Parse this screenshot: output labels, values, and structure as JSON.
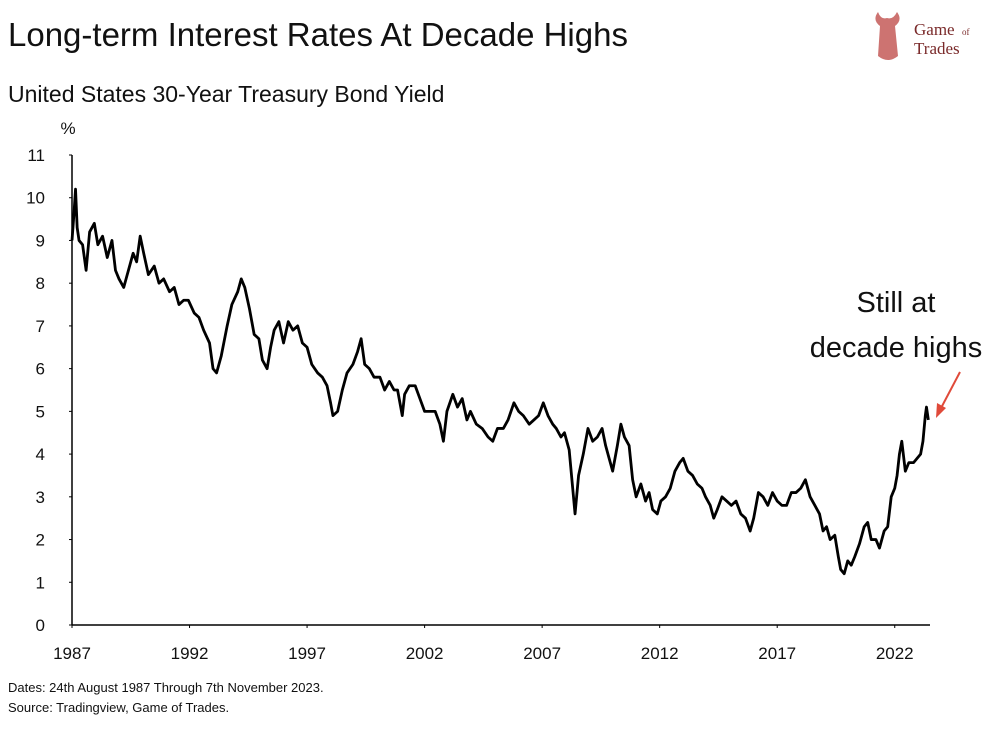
{
  "chart_data": {
    "type": "line",
    "title": "Long-term Interest Rates At Decade Highs",
    "subtitle": "United States 30-Year Treasury Bond Yield",
    "y_label": "%",
    "annotation": [
      "Still at",
      "decade highs"
    ],
    "notes": [
      "Dates: 24th August 1987 Through 7th November 2023.",
      "Source: Tradingview, Game of Trades."
    ],
    "logo": [
      "Game",
      "of",
      "Trades"
    ],
    "xlim": [
      1987,
      2023.5
    ],
    "xticks": [
      1987,
      1992,
      1997,
      2002,
      2007,
      2012,
      2017,
      2022
    ],
    "ylim": [
      0,
      11
    ],
    "yticks": [
      0,
      1,
      2,
      3,
      4,
      5,
      6,
      7,
      8,
      9,
      10,
      11
    ],
    "grid": false,
    "series": [
      {
        "name": "30-Year Treasury Bond Yield",
        "color": "#000000",
        "x": [
          1987.0,
          1987.08,
          1987.15,
          1987.22,
          1987.3,
          1987.45,
          1987.6,
          1987.75,
          1987.95,
          1988.1,
          1988.3,
          1988.5,
          1988.7,
          1988.85,
          1989.0,
          1989.2,
          1989.4,
          1989.6,
          1989.75,
          1989.9,
          1990.05,
          1990.25,
          1990.5,
          1990.7,
          1990.9,
          1991.15,
          1991.35,
          1991.55,
          1991.75,
          1991.95,
          1992.2,
          1992.4,
          1992.6,
          1992.85,
          1993.0,
          1993.15,
          1993.35,
          1993.6,
          1993.8,
          1994.05,
          1994.2,
          1994.35,
          1994.55,
          1994.75,
          1994.95,
          1995.1,
          1995.3,
          1995.45,
          1995.6,
          1995.8,
          1996.0,
          1996.2,
          1996.4,
          1996.6,
          1996.8,
          1997.0,
          1997.2,
          1997.45,
          1997.65,
          1997.85,
          1998.0,
          1998.1,
          1998.3,
          1998.5,
          1998.7,
          1998.95,
          1999.15,
          1999.3,
          1999.45,
          1999.65,
          1999.85,
          2000.1,
          2000.3,
          2000.5,
          2000.7,
          2000.85,
          2001.05,
          2001.15,
          2001.35,
          2001.6,
          2001.8,
          2002.0,
          2002.25,
          2002.45,
          2002.65,
          2002.8,
          2002.95,
          2003.2,
          2003.4,
          2003.6,
          2003.8,
          2003.95,
          2004.2,
          2004.45,
          2004.7,
          2004.9,
          2005.1,
          2005.35,
          2005.55,
          2005.8,
          2006.0,
          2006.2,
          2006.45,
          2006.65,
          2006.85,
          2007.05,
          2007.25,
          2007.45,
          2007.6,
          2007.8,
          2007.95,
          2008.15,
          2008.3,
          2008.4,
          2008.55,
          2008.75,
          2008.95,
          2009.15,
          2009.35,
          2009.55,
          2009.7,
          2009.85,
          2010.0,
          2010.2,
          2010.35,
          2010.5,
          2010.7,
          2010.85,
          2011.0,
          2011.2,
          2011.4,
          2011.55,
          2011.7,
          2011.9,
          2012.05,
          2012.25,
          2012.45,
          2012.65,
          2012.85,
          2013.0,
          2013.2,
          2013.4,
          2013.6,
          2013.8,
          2013.95,
          2014.15,
          2014.3,
          2014.45,
          2014.65,
          2014.85,
          2015.05,
          2015.25,
          2015.45,
          2015.65,
          2015.85,
          2016.0,
          2016.2,
          2016.4,
          2016.6,
          2016.8,
          2017.0,
          2017.2,
          2017.4,
          2017.6,
          2017.8,
          2018.0,
          2018.2,
          2018.4,
          2018.6,
          2018.8,
          2018.95,
          2019.1,
          2019.25,
          2019.45,
          2019.6,
          2019.7,
          2019.85,
          2020.0,
          2020.15,
          2020.3,
          2020.5,
          2020.7,
          2020.85,
          2021.0,
          2021.2,
          2021.35,
          2021.55,
          2021.7,
          2021.85,
          2022.0,
          2022.1,
          2022.2,
          2022.3,
          2022.45,
          2022.6,
          2022.8,
          2022.95,
          2023.1,
          2023.2,
          2023.3,
          2023.35,
          2023.43
        ],
        "values": [
          9.0,
          9.6,
          10.2,
          9.3,
          9.0,
          8.9,
          8.3,
          9.2,
          9.4,
          8.9,
          9.1,
          8.6,
          9.0,
          8.3,
          8.1,
          7.9,
          8.3,
          8.7,
          8.5,
          9.1,
          8.7,
          8.2,
          8.4,
          8.0,
          8.1,
          7.8,
          7.9,
          7.5,
          7.6,
          7.6,
          7.3,
          7.2,
          6.9,
          6.6,
          6.0,
          5.9,
          6.3,
          7.0,
          7.5,
          7.8,
          8.1,
          7.9,
          7.4,
          6.8,
          6.7,
          6.2,
          6.0,
          6.5,
          6.9,
          7.1,
          6.6,
          7.1,
          6.9,
          7.0,
          6.6,
          6.5,
          6.1,
          5.9,
          5.8,
          5.6,
          5.2,
          4.9,
          5.0,
          5.5,
          5.9,
          6.1,
          6.4,
          6.7,
          6.1,
          6.0,
          5.8,
          5.8,
          5.5,
          5.7,
          5.5,
          5.5,
          4.9,
          5.4,
          5.6,
          5.6,
          5.3,
          5.0,
          5.0,
          5.0,
          4.7,
          4.3,
          5.0,
          5.4,
          5.1,
          5.3,
          4.8,
          5.0,
          4.7,
          4.6,
          4.4,
          4.3,
          4.6,
          4.6,
          4.8,
          5.2,
          5.0,
          4.9,
          4.7,
          4.8,
          4.9,
          5.2,
          4.9,
          4.7,
          4.6,
          4.4,
          4.5,
          4.1,
          3.2,
          2.6,
          3.5,
          4.0,
          4.6,
          4.3,
          4.4,
          4.6,
          4.2,
          3.9,
          3.6,
          4.2,
          4.7,
          4.4,
          4.2,
          3.4,
          3.0,
          3.3,
          2.9,
          3.1,
          2.7,
          2.6,
          2.9,
          3.0,
          3.2,
          3.6,
          3.8,
          3.9,
          3.6,
          3.5,
          3.3,
          3.2,
          3.0,
          2.8,
          2.5,
          2.7,
          3.0,
          2.9,
          2.8,
          2.9,
          2.6,
          2.5,
          2.2,
          2.5,
          3.1,
          3.0,
          2.8,
          3.1,
          2.9,
          2.8,
          2.8,
          3.1,
          3.1,
          3.2,
          3.4,
          3.0,
          2.8,
          2.6,
          2.2,
          2.3,
          2.0,
          2.1,
          1.6,
          1.3,
          1.2,
          1.5,
          1.4,
          1.6,
          1.9,
          2.3,
          2.4,
          2.0,
          2.0,
          1.8,
          2.2,
          2.3,
          3.0,
          3.2,
          3.5,
          4.0,
          4.3,
          3.6,
          3.8,
          3.8,
          3.9,
          4.0,
          4.3,
          4.9,
          5.1,
          4.8
        ]
      }
    ]
  }
}
